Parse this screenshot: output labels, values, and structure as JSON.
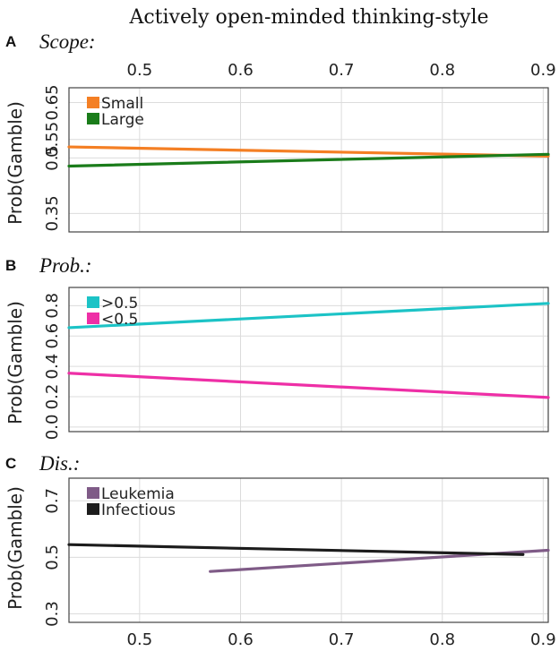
{
  "figure_title": "Actively open-minded thinking-style",
  "x_axis": {
    "ticks": [
      0.5,
      0.6,
      0.7,
      0.8,
      0.9
    ],
    "tick_labels": [
      "0.5",
      "0.6",
      "0.7",
      "0.8",
      "0.9"
    ],
    "xlim": [
      0.43,
      0.905
    ]
  },
  "chart_data": [
    {
      "type": "line",
      "panel_label": "A",
      "title": "Scope:",
      "xlabel": "Actively open-minded thinking-style",
      "ylabel": "Prob(Gamble)",
      "ylim": [
        0.3,
        0.69
      ],
      "yticks": [
        0.35,
        0.5,
        0.55,
        0.65
      ],
      "ytick_labels": [
        "0.35",
        "0.5",
        "0.55",
        "0.65"
      ],
      "legend_position": "top-left",
      "series": [
        {
          "name": "Small",
          "color": "#f47f24",
          "x": [
            0.43,
            0.905
          ],
          "y": [
            0.53,
            0.505
          ]
        },
        {
          "name": "Large",
          "color": "#1a7c1a",
          "x": [
            0.43,
            0.905
          ],
          "y": [
            0.478,
            0.51
          ]
        }
      ]
    },
    {
      "type": "line",
      "panel_label": "B",
      "title": "Prob.:",
      "xlabel": "Actively open-minded thinking-style",
      "ylabel": "Prob(Gamble)",
      "ylim": [
        -0.03,
        0.92
      ],
      "yticks": [
        0.0,
        0.2,
        0.4,
        0.6,
        0.8
      ],
      "ytick_labels": [
        "0.0",
        "0.2",
        "0.4",
        "0.6",
        "0.8"
      ],
      "legend_position": "top-left",
      "series": [
        {
          "name": ">0.5",
          "color": "#1cc3c6",
          "x": [
            0.43,
            0.905
          ],
          "y": [
            0.655,
            0.815
          ]
        },
        {
          "name": "<0.5",
          "color": "#ee2fa6",
          "x": [
            0.43,
            0.905
          ],
          "y": [
            0.355,
            0.195
          ]
        }
      ]
    },
    {
      "type": "line",
      "panel_label": "C",
      "title": "Dis.:",
      "xlabel": "Actively open-minded thinking-style",
      "ylabel": "Prob(Gamble)",
      "ylim": [
        0.27,
        0.78
      ],
      "yticks": [
        0.3,
        0.5,
        0.7
      ],
      "ytick_labels": [
        "0.3",
        "0.5",
        "0.7"
      ],
      "legend_position": "top-left",
      "series": [
        {
          "name": "Leukemia",
          "color": "#7f5b87",
          "x": [
            0.57,
            0.905
          ],
          "y": [
            0.45,
            0.525
          ]
        },
        {
          "name": "Infectious",
          "color": "#1c1c1c",
          "x": [
            0.43,
            0.88
          ],
          "y": [
            0.545,
            0.51
          ]
        }
      ]
    }
  ]
}
